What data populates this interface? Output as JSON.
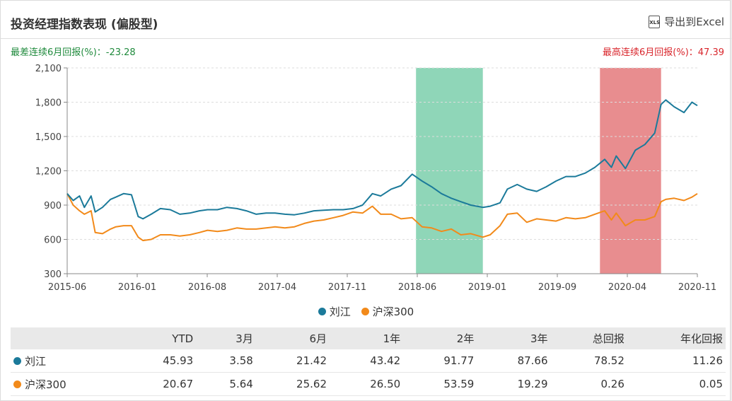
{
  "title": "投资经理指数表现 (偏股型)",
  "export_label": "导出到Excel",
  "export_icon": "xls-file-icon",
  "worst_label": "最差连续6月回报(%)：-23.28",
  "best_label": "最高连续6月回报(%)：47.39",
  "colors": {
    "manager": "#1b7a9a",
    "index": "#f28a1a",
    "worst_band": "#8fd6b8",
    "best_band": "#e88d8f"
  },
  "chart_data": {
    "type": "line",
    "x_tick_labels": [
      "2015-06",
      "2016-01",
      "2016-08",
      "2017-04",
      "2017-11",
      "2018-06",
      "2019-01",
      "2019-09",
      "2020-04",
      "2020-11"
    ],
    "y_ticks": [
      300,
      600,
      900,
      1200,
      1500,
      1800,
      2100
    ],
    "y_tick_labels": [
      "300",
      "600",
      "900",
      "1,200",
      "1,500",
      "1,800",
      "2,100"
    ],
    "ylim": [
      300,
      2100
    ],
    "grid": true,
    "legend_position": "bottom",
    "highlight_worst": {
      "from": "2018-06-01",
      "to": "2018-12-28"
    },
    "highlight_best": {
      "from": "2019-12-31",
      "to": "2020-07-10"
    },
    "series": [
      {
        "name": "刘江",
        "points": [
          [
            "2015-06-01",
            1000
          ],
          [
            "2015-06-20",
            940
          ],
          [
            "2015-07-10",
            980
          ],
          [
            "2015-07-25",
            880
          ],
          [
            "2015-08-15",
            980
          ],
          [
            "2015-08-28",
            840
          ],
          [
            "2015-09-20",
            880
          ],
          [
            "2015-10-15",
            950
          ],
          [
            "2015-11-01",
            970
          ],
          [
            "2015-11-25",
            1000
          ],
          [
            "2015-12-20",
            990
          ],
          [
            "2016-01-10",
            800
          ],
          [
            "2016-01-25",
            780
          ],
          [
            "2016-02-20",
            820
          ],
          [
            "2016-03-20",
            870
          ],
          [
            "2016-04-20",
            860
          ],
          [
            "2016-05-20",
            820
          ],
          [
            "2016-06-20",
            830
          ],
          [
            "2016-07-20",
            850
          ],
          [
            "2016-08-15",
            860
          ],
          [
            "2016-09-15",
            860
          ],
          [
            "2016-10-15",
            880
          ],
          [
            "2016-11-15",
            870
          ],
          [
            "2016-12-15",
            850
          ],
          [
            "2017-01-15",
            820
          ],
          [
            "2017-02-15",
            830
          ],
          [
            "2017-03-15",
            830
          ],
          [
            "2017-04-15",
            820
          ],
          [
            "2017-05-15",
            815
          ],
          [
            "2017-06-15",
            830
          ],
          [
            "2017-07-15",
            850
          ],
          [
            "2017-08-15",
            855
          ],
          [
            "2017-09-15",
            860
          ],
          [
            "2017-10-15",
            860
          ],
          [
            "2017-11-15",
            870
          ],
          [
            "2017-12-15",
            900
          ],
          [
            "2018-01-15",
            1000
          ],
          [
            "2018-02-10",
            980
          ],
          [
            "2018-03-15",
            1040
          ],
          [
            "2018-04-15",
            1070
          ],
          [
            "2018-05-20",
            1170
          ],
          [
            "2018-06-20",
            1110
          ],
          [
            "2018-07-20",
            1060
          ],
          [
            "2018-08-20",
            1000
          ],
          [
            "2018-09-20",
            960
          ],
          [
            "2018-10-20",
            930
          ],
          [
            "2018-11-20",
            900
          ],
          [
            "2018-12-28",
            880
          ],
          [
            "2019-01-20",
            890
          ],
          [
            "2019-02-20",
            920
          ],
          [
            "2019-03-15",
            1040
          ],
          [
            "2019-04-15",
            1080
          ],
          [
            "2019-05-15",
            1040
          ],
          [
            "2019-06-15",
            1020
          ],
          [
            "2019-07-15",
            1060
          ],
          [
            "2019-08-15",
            1110
          ],
          [
            "2019-09-15",
            1150
          ],
          [
            "2019-10-15",
            1150
          ],
          [
            "2019-11-15",
            1180
          ],
          [
            "2019-12-15",
            1230
          ],
          [
            "2020-01-15",
            1300
          ],
          [
            "2020-02-05",
            1230
          ],
          [
            "2020-02-20",
            1330
          ],
          [
            "2020-03-20",
            1220
          ],
          [
            "2020-04-20",
            1380
          ],
          [
            "2020-05-20",
            1430
          ],
          [
            "2020-06-20",
            1530
          ],
          [
            "2020-07-10",
            1780
          ],
          [
            "2020-07-25",
            1820
          ],
          [
            "2020-08-20",
            1760
          ],
          [
            "2020-09-20",
            1710
          ],
          [
            "2020-10-15",
            1800
          ],
          [
            "2020-11-01",
            1770
          ]
        ]
      },
      {
        "name": "沪深300",
        "points": [
          [
            "2015-06-01",
            1000
          ],
          [
            "2015-06-20",
            900
          ],
          [
            "2015-07-10",
            850
          ],
          [
            "2015-07-25",
            820
          ],
          [
            "2015-08-15",
            850
          ],
          [
            "2015-08-28",
            660
          ],
          [
            "2015-09-20",
            650
          ],
          [
            "2015-10-15",
            690
          ],
          [
            "2015-11-01",
            710
          ],
          [
            "2015-11-25",
            720
          ],
          [
            "2015-12-20",
            720
          ],
          [
            "2016-01-10",
            620
          ],
          [
            "2016-01-25",
            590
          ],
          [
            "2016-02-20",
            600
          ],
          [
            "2016-03-20",
            640
          ],
          [
            "2016-04-20",
            640
          ],
          [
            "2016-05-20",
            630
          ],
          [
            "2016-06-20",
            640
          ],
          [
            "2016-07-20",
            660
          ],
          [
            "2016-08-15",
            680
          ],
          [
            "2016-09-15",
            670
          ],
          [
            "2016-10-15",
            680
          ],
          [
            "2016-11-15",
            700
          ],
          [
            "2016-12-15",
            690
          ],
          [
            "2017-01-15",
            690
          ],
          [
            "2017-02-15",
            700
          ],
          [
            "2017-03-15",
            710
          ],
          [
            "2017-04-15",
            700
          ],
          [
            "2017-05-15",
            710
          ],
          [
            "2017-06-15",
            740
          ],
          [
            "2017-07-15",
            760
          ],
          [
            "2017-08-15",
            770
          ],
          [
            "2017-09-15",
            790
          ],
          [
            "2017-10-15",
            810
          ],
          [
            "2017-11-15",
            840
          ],
          [
            "2017-12-15",
            830
          ],
          [
            "2018-01-15",
            890
          ],
          [
            "2018-02-10",
            820
          ],
          [
            "2018-03-15",
            820
          ],
          [
            "2018-04-15",
            780
          ],
          [
            "2018-05-20",
            790
          ],
          [
            "2018-06-20",
            710
          ],
          [
            "2018-07-20",
            700
          ],
          [
            "2018-08-20",
            670
          ],
          [
            "2018-09-20",
            690
          ],
          [
            "2018-10-20",
            640
          ],
          [
            "2018-11-20",
            650
          ],
          [
            "2018-12-28",
            620
          ],
          [
            "2019-01-20",
            640
          ],
          [
            "2019-02-20",
            720
          ],
          [
            "2019-03-15",
            820
          ],
          [
            "2019-04-15",
            830
          ],
          [
            "2019-05-15",
            750
          ],
          [
            "2019-06-15",
            780
          ],
          [
            "2019-07-15",
            770
          ],
          [
            "2019-08-15",
            760
          ],
          [
            "2019-09-15",
            790
          ],
          [
            "2019-10-15",
            780
          ],
          [
            "2019-11-15",
            790
          ],
          [
            "2019-12-15",
            820
          ],
          [
            "2020-01-15",
            850
          ],
          [
            "2020-02-05",
            770
          ],
          [
            "2020-02-20",
            830
          ],
          [
            "2020-03-20",
            720
          ],
          [
            "2020-04-20",
            770
          ],
          [
            "2020-05-20",
            770
          ],
          [
            "2020-06-20",
            800
          ],
          [
            "2020-07-10",
            930
          ],
          [
            "2020-07-25",
            950
          ],
          [
            "2020-08-20",
            960
          ],
          [
            "2020-09-20",
            940
          ],
          [
            "2020-10-15",
            970
          ],
          [
            "2020-11-01",
            1000
          ]
        ]
      }
    ]
  },
  "table": {
    "headers": [
      "",
      "YTD",
      "3月",
      "6月",
      "1年",
      "2年",
      "3年",
      "总回报",
      "年化回报"
    ],
    "rows": [
      {
        "name": "刘江",
        "values": [
          "45.93",
          "3.58",
          "21.42",
          "43.42",
          "91.77",
          "87.66",
          "78.52",
          "11.26"
        ]
      },
      {
        "name": "沪深300",
        "values": [
          "20.67",
          "5.64",
          "25.62",
          "26.50",
          "53.59",
          "19.29",
          "0.26",
          "0.05"
        ]
      }
    ]
  }
}
